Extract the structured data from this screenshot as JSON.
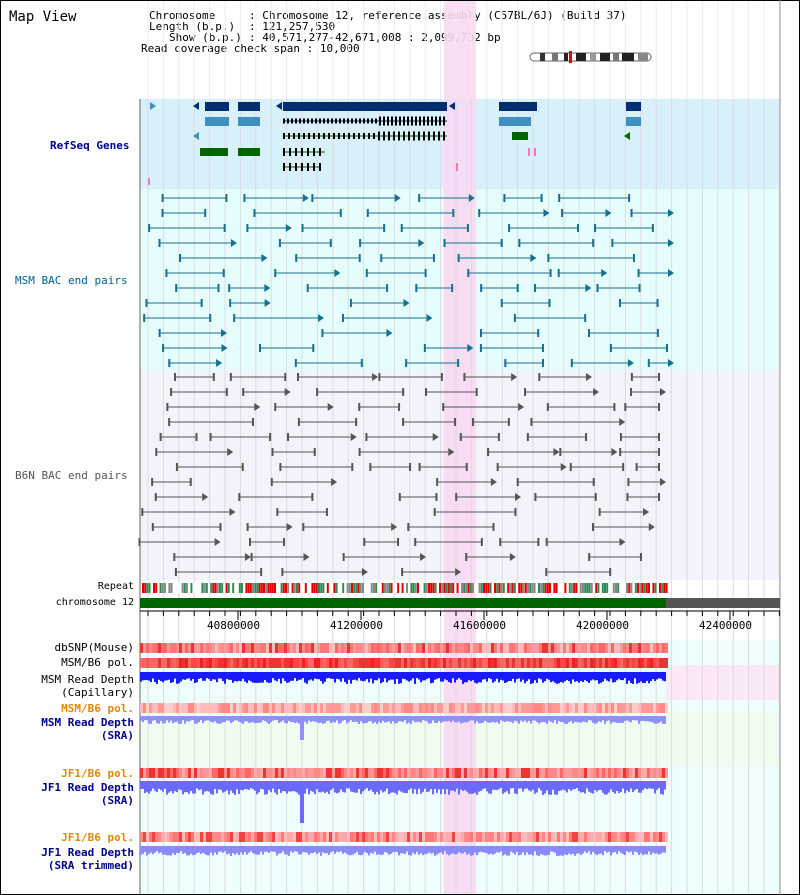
{
  "title": "Map View",
  "info": {
    "rows": [
      {
        "label": "Chromosome",
        "sep": ":",
        "value": "Chromosome 12, reference assembly (C57BL/6J) (Build 37)"
      },
      {
        "label": "Length (b.p.)",
        "sep": ":",
        "value": "121,257,530"
      },
      {
        "label": "Show (b.p.)",
        "sep": ":",
        "value": "40,571,277-42,671,008 : 2,099,732 bp"
      },
      {
        "label": "Read coverage check span",
        "sep": ":",
        "value": "10,000"
      }
    ]
  },
  "tracks": {
    "refseq": "RefSeq Genes",
    "msm_bac": "MSM BAC end pairs",
    "b6n_bac": "B6N BAC end pairs",
    "repeat": "Repeat",
    "chromosome": "chromosome 12",
    "dbsnp": "dbSNP(Mouse)",
    "msm_b6_pol": "MSM/B6 pol.",
    "msm_depth_cap_1": "MSM Read Depth",
    "msm_depth_cap_2": "(Capillary)",
    "msm_b6_pol2": "MSM/B6 pol.",
    "msm_depth_sra_1": "MSM Read Depth",
    "msm_depth_sra_2": "(SRA)",
    "jf1_b6_pol": "JF1/B6 pol.",
    "jf1_depth_sra_1": "JF1 Read Depth",
    "jf1_depth_sra_2": "(SRA)",
    "jf1_b6_pol2": "JF1/B6 pol.",
    "jf1_depth_trim_1": "JF1 Read Depth",
    "jf1_depth_trim_2": "(SRA trimmed)"
  },
  "axis": {
    "ticks": [
      "40800000",
      "41200000",
      "41600000",
      "42000000",
      "42400000"
    ]
  },
  "colors": {
    "refseq_bg": "#d8f0fa",
    "msm_bg": "#e6fdfd",
    "b6n_bg": "#f3f3fb",
    "highlight": "#f7d9f3",
    "gene_dark": "#002e6e",
    "gene_mid": "#3f8fc0",
    "gene_green": "#006400",
    "msm_line": "#16708f",
    "b6n_line": "#555555",
    "chrom_green": "#006400",
    "chrom_gray": "#555555"
  }
}
